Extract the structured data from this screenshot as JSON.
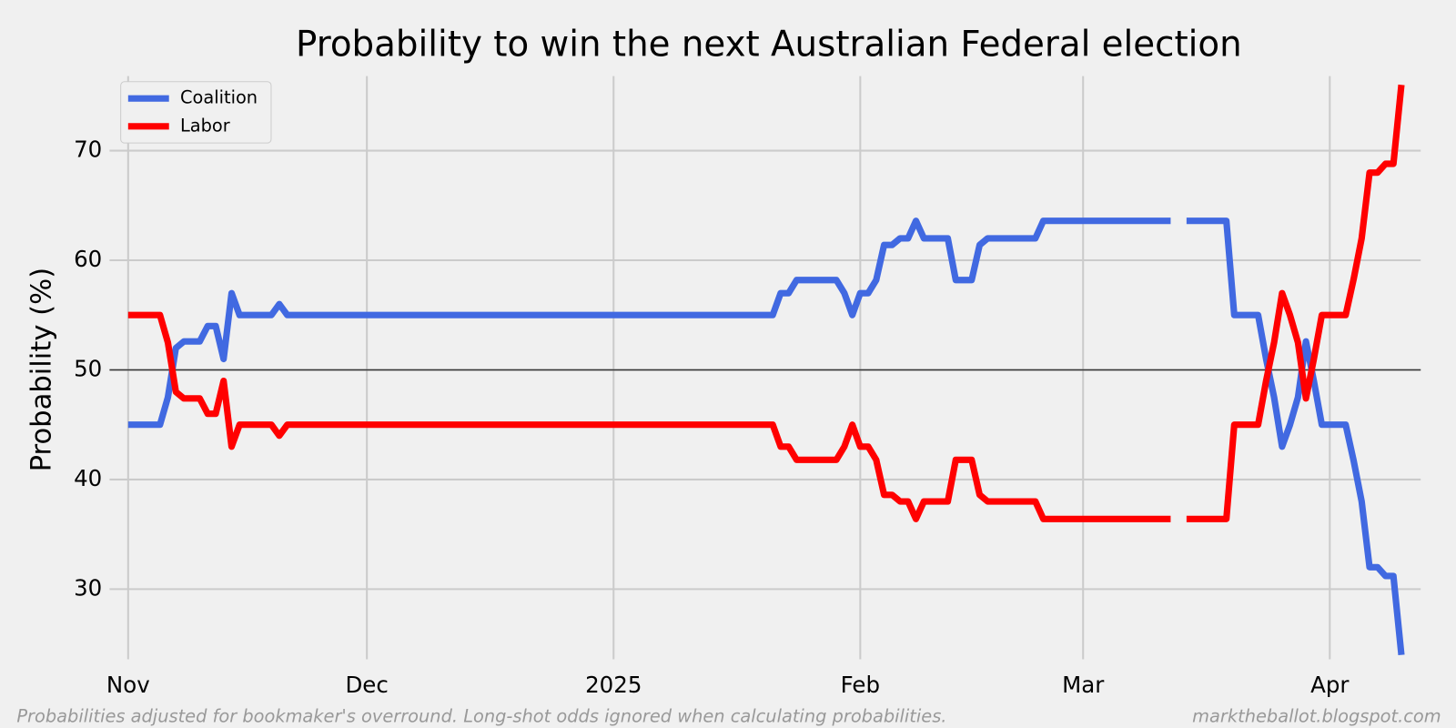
{
  "chart_data": {
    "type": "line",
    "title": "Probability to win the next Australian Federal election",
    "y_label": "Probability (%)",
    "footnote": "Probabilities adjusted for bookmaker's overround. Long-shot odds ignored when calculating probabilities.",
    "source": "marktheballot.blogspot.com",
    "categories": [
      "Nov",
      null,
      null,
      null,
      null,
      null,
      null,
      null,
      null,
      null,
      null,
      null,
      null,
      null,
      null,
      null,
      null,
      null,
      null,
      null,
      null,
      null,
      null,
      null,
      null,
      null,
      null,
      null,
      null,
      null,
      "Dec",
      null,
      null,
      null,
      null,
      null,
      null,
      null,
      null,
      null,
      null,
      null,
      null,
      null,
      null,
      null,
      null,
      null,
      null,
      null,
      null,
      null,
      null,
      null,
      null,
      null,
      null,
      null,
      null,
      null,
      null,
      "2025",
      null,
      null,
      null,
      null,
      null,
      null,
      null,
      null,
      null,
      null,
      null,
      null,
      null,
      null,
      null,
      null,
      null,
      null,
      null,
      null,
      null,
      null,
      null,
      null,
      null,
      null,
      null,
      null,
      null,
      null,
      "Feb",
      null,
      null,
      null,
      null,
      null,
      null,
      null,
      null,
      null,
      null,
      null,
      null,
      null,
      null,
      null,
      null,
      null,
      null,
      null,
      null,
      null,
      null,
      null,
      null,
      null,
      null,
      null,
      "Mar",
      null,
      null,
      null,
      null,
      null,
      null,
      null,
      null,
      null,
      null,
      null,
      null,
      null,
      null,
      null,
      null,
      null,
      null,
      null,
      null,
      null,
      null,
      null,
      null,
      null,
      null,
      null,
      null,
      null,
      null,
      "Apr",
      null,
      null,
      null,
      null,
      null,
      null,
      null,
      null,
      null
    ],
    "series": [
      {
        "name": "Coalition",
        "color": "#4169e1",
        "values": [
          45,
          45,
          45,
          45,
          45,
          47.5,
          52,
          52.6,
          52.6,
          52.6,
          54,
          54,
          51,
          57,
          55,
          55,
          55,
          55,
          55,
          56,
          55,
          55,
          55,
          55,
          55,
          55,
          55,
          55,
          55,
          55,
          55,
          55,
          55,
          55,
          55,
          55,
          55,
          55,
          55,
          55,
          55,
          55,
          55,
          55,
          55,
          55,
          55,
          55,
          55,
          55,
          55,
          55,
          55,
          55,
          55,
          55,
          55,
          55,
          55,
          55,
          55,
          55,
          55,
          55,
          55,
          55,
          55,
          55,
          55,
          55,
          55,
          55,
          55,
          55,
          55,
          55,
          55,
          55,
          55,
          55,
          55,
          55,
          57,
          57,
          58.2,
          58.2,
          58.2,
          58.2,
          58.2,
          58.2,
          57,
          55,
          57,
          57,
          58.2,
          61.4,
          61.4,
          62,
          62,
          63.6,
          62,
          62,
          62,
          62,
          58.2,
          58.2,
          58.2,
          61.4,
          62,
          62,
          62,
          62,
          62,
          62,
          62,
          63.6,
          63.6,
          63.6,
          63.6,
          63.6,
          63.6,
          63.6,
          63.6,
          63.6,
          63.6,
          63.6,
          63.6,
          63.6,
          63.6,
          63.6,
          63.6,
          63.6,
          null,
          63.6,
          63.6,
          63.6,
          63.6,
          63.6,
          63.6,
          55,
          55,
          55,
          55,
          51,
          47.5,
          43,
          45,
          47.5,
          52.6,
          49,
          45,
          45,
          45,
          45,
          41.7,
          38,
          32,
          32,
          31.2,
          31.2,
          24
        ]
      },
      {
        "name": "Labor",
        "color": "#ff0000",
        "values": [
          55,
          55,
          55,
          55,
          55,
          52.5,
          48,
          47.4,
          47.4,
          47.4,
          46,
          46,
          49,
          43,
          45,
          45,
          45,
          45,
          45,
          44,
          45,
          45,
          45,
          45,
          45,
          45,
          45,
          45,
          45,
          45,
          45,
          45,
          45,
          45,
          45,
          45,
          45,
          45,
          45,
          45,
          45,
          45,
          45,
          45,
          45,
          45,
          45,
          45,
          45,
          45,
          45,
          45,
          45,
          45,
          45,
          45,
          45,
          45,
          45,
          45,
          45,
          45,
          45,
          45,
          45,
          45,
          45,
          45,
          45,
          45,
          45,
          45,
          45,
          45,
          45,
          45,
          45,
          45,
          45,
          45,
          45,
          45,
          43,
          43,
          41.8,
          41.8,
          41.8,
          41.8,
          41.8,
          41.8,
          43,
          45,
          43,
          43,
          41.8,
          38.6,
          38.6,
          38,
          38,
          36.4,
          38,
          38,
          38,
          38,
          41.8,
          41.8,
          41.8,
          38.6,
          38,
          38,
          38,
          38,
          38,
          38,
          38,
          36.4,
          36.4,
          36.4,
          36.4,
          36.4,
          36.4,
          36.4,
          36.4,
          36.4,
          36.4,
          36.4,
          36.4,
          36.4,
          36.4,
          36.4,
          36.4,
          36.4,
          null,
          36.4,
          36.4,
          36.4,
          36.4,
          36.4,
          36.4,
          45,
          45,
          45,
          45,
          49,
          52.5,
          57,
          55,
          52.5,
          47.4,
          51,
          55,
          55,
          55,
          55,
          58.3,
          62,
          68,
          68,
          68.8,
          68.8,
          76
        ]
      }
    ],
    "ylim": [
      23.6,
      76.8
    ],
    "yticks": [
      30,
      40,
      50,
      60,
      70
    ],
    "reference_line": 50,
    "grid": true,
    "legend": "upper-left"
  }
}
